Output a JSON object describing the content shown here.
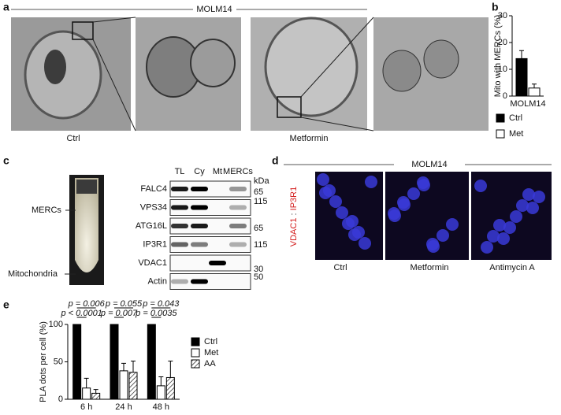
{
  "panel_labels": [
    "a",
    "b",
    "c",
    "d",
    "e"
  ],
  "panel_a": {
    "title": "MOLM14",
    "captions": [
      "Ctrl",
      "Metformin"
    ]
  },
  "panel_c": {
    "fractions": [
      "MERCs",
      "Mitochondria"
    ],
    "lanes": [
      "TL",
      "Cy",
      "Mt",
      "MERCs"
    ],
    "proteins": [
      "FALC4",
      "VPS34",
      "ATG16L",
      "IP3R1",
      "VDAC1",
      "Actin"
    ],
    "mw_unit": "kDa",
    "mw_markers": [
      "65",
      "115",
      "65",
      "115",
      "30",
      "50"
    ]
  },
  "panel_d": {
    "title": "MOLM14",
    "stain_green": "VDAC1",
    "separator": ":",
    "stain_red": "IP3R1",
    "captions": [
      "Ctrl",
      "Metformin",
      "Antimycin A"
    ]
  },
  "chart_data": [
    {
      "type": "bar",
      "y_label": "Mito with MERCs (%)",
      "categories": [
        "MOLM14"
      ],
      "series": [
        {
          "name": "Ctrl",
          "color": "#000000",
          "values": [
            14
          ],
          "errors": [
            3
          ]
        },
        {
          "name": "Met",
          "color": "#ffffff",
          "values": [
            3
          ],
          "errors": [
            1.5
          ]
        }
      ],
      "ylim": [
        0,
        30
      ],
      "yticks": [
        0,
        10,
        20,
        30
      ]
    },
    {
      "type": "bar",
      "y_label": "PLA dots per cell (%)",
      "categories": [
        "6 h",
        "24 h",
        "48 h"
      ],
      "series": [
        {
          "name": "Ctrl",
          "color": "#000000",
          "values": [
            100,
            100,
            100
          ]
        },
        {
          "name": "Met",
          "color": "#ffffff",
          "values": [
            15,
            38,
            18
          ],
          "errors": [
            13,
            10,
            12
          ]
        },
        {
          "name": "AA",
          "color": "#ffffff",
          "hatch": true,
          "values": [
            8,
            36,
            29
          ],
          "errors": [
            5,
            15,
            22
          ]
        }
      ],
      "ylim": [
        0,
        100
      ],
      "yticks": [
        0,
        50,
        100
      ],
      "annotations": [
        "p = 0.006",
        "p < 0.0001",
        "p = 0.055",
        "p = 0.007",
        "p = 0.043",
        "p = 0.0035"
      ]
    }
  ]
}
